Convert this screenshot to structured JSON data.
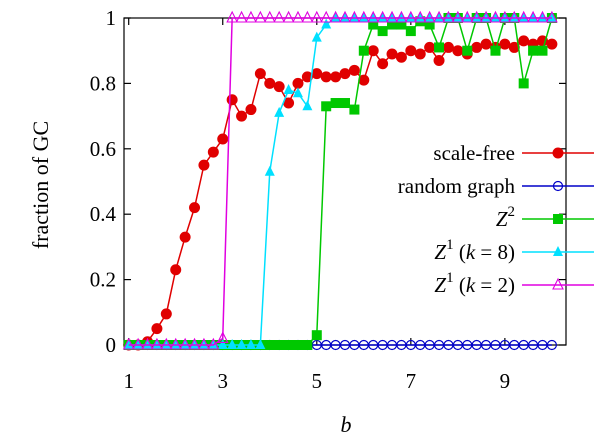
{
  "chart_data": {
    "type": "line",
    "xlabel": "b",
    "ylabel": "fraction of GC",
    "xlim": [
      0.9,
      10.3
    ],
    "ylim": [
      0,
      1
    ],
    "xticks": [
      1,
      3,
      5,
      7,
      9
    ],
    "yticks": [
      0,
      0.2,
      0.4,
      0.6,
      0.8,
      1
    ],
    "xtick_labels": [
      "1",
      "3",
      "5",
      "7",
      "9"
    ],
    "ytick_labels": [
      "0",
      "0.2",
      "0.4",
      "0.6",
      "0.8",
      "1"
    ],
    "grid": false,
    "legend_position": "right",
    "series": [
      {
        "key": "sf",
        "name": "scale-free",
        "color": "#e00000",
        "marker": "circle-filled",
        "x": [
          1.0,
          1.2,
          1.4,
          1.6,
          1.8,
          2.0,
          2.2,
          2.4,
          2.6,
          2.8,
          3.0,
          3.2,
          3.4,
          3.6,
          3.8,
          4.0,
          4.2,
          4.4,
          4.6,
          4.8,
          5.0,
          5.2,
          5.4,
          5.6,
          5.8,
          6.0,
          6.2,
          6.4,
          6.6,
          6.8,
          7.0,
          7.2,
          7.4,
          7.6,
          7.8,
          8.0,
          8.2,
          8.4,
          8.6,
          8.8,
          9.0,
          9.2,
          9.4,
          9.6,
          9.8,
          10.0
        ],
        "y": [
          0,
          0,
          0.01,
          0.05,
          0.095,
          0.23,
          0.33,
          0.42,
          0.55,
          0.59,
          0.63,
          0.75,
          0.7,
          0.72,
          0.83,
          0.8,
          0.79,
          0.74,
          0.8,
          0.82,
          0.83,
          0.82,
          0.82,
          0.83,
          0.84,
          0.81,
          0.9,
          0.86,
          0.89,
          0.88,
          0.9,
          0.89,
          0.91,
          0.87,
          0.91,
          0.9,
          0.89,
          0.91,
          0.92,
          0.91,
          0.92,
          0.91,
          0.93,
          0.92,
          0.93,
          0.92
        ]
      },
      {
        "key": "rg",
        "name": "random graph",
        "color": "#0000c8",
        "marker": "circle-open",
        "x": [
          1.0,
          1.2,
          1.4,
          1.6,
          1.8,
          2.0,
          2.2,
          2.4,
          2.6,
          2.8,
          3.0,
          3.2,
          3.4,
          3.6,
          3.8,
          4.0,
          4.2,
          4.4,
          4.6,
          4.8,
          5.0,
          5.2,
          5.4,
          5.6,
          5.8,
          6.0,
          6.2,
          6.4,
          6.6,
          6.8,
          7.0,
          7.2,
          7.4,
          7.6,
          7.8,
          8.0,
          8.2,
          8.4,
          8.6,
          8.8,
          9.0,
          9.2,
          9.4,
          9.6,
          9.8,
          10.0
        ],
        "y": [
          0,
          0,
          0,
          0,
          0,
          0,
          0,
          0,
          0,
          0,
          0,
          0,
          0,
          0,
          0,
          0,
          0,
          0,
          0,
          0,
          0,
          0,
          0,
          0,
          0,
          0,
          0,
          0,
          0,
          0,
          0,
          0,
          0,
          0,
          0,
          0,
          0,
          0,
          0,
          0,
          0,
          0,
          0,
          0,
          0,
          0
        ]
      },
      {
        "key": "z2",
        "name": "Z2",
        "color": "#00c800",
        "marker": "square-filled",
        "x": [
          1.0,
          1.2,
          1.4,
          1.6,
          1.8,
          2.0,
          2.2,
          2.4,
          2.6,
          2.8,
          3.0,
          3.2,
          3.4,
          3.6,
          3.8,
          4.0,
          4.2,
          4.4,
          4.6,
          4.8,
          5.0,
          5.2,
          5.4,
          5.6,
          5.8,
          6.0,
          6.2,
          6.4,
          6.6,
          6.8,
          7.0,
          7.2,
          7.4,
          7.6,
          7.8,
          8.0,
          8.2,
          8.4,
          8.6,
          8.8,
          9.0,
          9.2,
          9.4,
          9.6,
          9.8,
          10.0
        ],
        "y": [
          0,
          0,
          0,
          0,
          0,
          0,
          0,
          0,
          0,
          0,
          0,
          0,
          0,
          0,
          0,
          0,
          0,
          0,
          0,
          0,
          0.03,
          0.73,
          0.74,
          0.74,
          0.72,
          0.9,
          0.98,
          0.96,
          0.98,
          0.98,
          0.96,
          0.99,
          0.98,
          0.91,
          1.0,
          1.0,
          0.9,
          1.0,
          1.0,
          0.9,
          1.0,
          1.0,
          0.8,
          0.9,
          0.9,
          1.0
        ]
      },
      {
        "key": "z1k8",
        "name": "Z1 (k = 8)",
        "color": "#00e0ff",
        "marker": "triangle-filled",
        "x": [
          1.0,
          1.2,
          1.4,
          1.6,
          1.8,
          2.0,
          2.2,
          2.4,
          2.6,
          2.8,
          3.0,
          3.2,
          3.4,
          3.6,
          3.8,
          4.0,
          4.2,
          4.4,
          4.6,
          4.8,
          5.0,
          5.2,
          5.4,
          5.6,
          5.8,
          6.0,
          6.2,
          6.4,
          6.6,
          6.8,
          7.0,
          7.2,
          7.4,
          7.6,
          7.8,
          8.0,
          8.2,
          8.4,
          8.6,
          8.8,
          9.0,
          9.2,
          9.4,
          9.6,
          9.8,
          10.0
        ],
        "y": [
          0,
          0,
          0,
          0,
          0,
          0,
          0,
          0,
          0,
          0,
          0,
          0,
          0,
          0,
          0,
          0.53,
          0.71,
          0.78,
          0.77,
          0.73,
          0.94,
          0.98,
          1.0,
          1.0,
          1.0,
          1.0,
          1.0,
          1.0,
          1.0,
          1.0,
          1.0,
          1.0,
          1.0,
          1.0,
          1.0,
          1.0,
          1.0,
          1.0,
          1.0,
          1.0,
          1.0,
          1.0,
          1.0,
          1.0,
          1.0,
          1.0
        ]
      },
      {
        "key": "z1k2",
        "name": "Z1 (k = 2)",
        "color": "#e000e0",
        "marker": "triangle-open",
        "x": [
          1.0,
          1.2,
          1.4,
          1.6,
          1.8,
          2.0,
          2.2,
          2.4,
          2.6,
          2.8,
          3.0,
          3.2,
          3.4,
          3.6,
          3.8,
          4.0,
          4.2,
          4.4,
          4.6,
          4.8,
          5.0,
          5.2,
          5.4,
          5.6,
          5.8,
          6.0,
          6.2,
          6.4,
          6.6,
          6.8,
          7.0,
          7.2,
          7.4,
          7.6,
          7.8,
          8.0,
          8.2,
          8.4,
          8.6,
          8.8,
          9.0,
          9.2,
          9.4,
          9.6,
          9.8,
          10.0
        ],
        "y": [
          0,
          0,
          0,
          0,
          0,
          0,
          0,
          0,
          0,
          0,
          0.02,
          1.0,
          1.0,
          1.0,
          1.0,
          1.0,
          1.0,
          1.0,
          1.0,
          1.0,
          1.0,
          1.0,
          1.0,
          1.0,
          1.0,
          1.0,
          1.0,
          1.0,
          1.0,
          1.0,
          1.0,
          1.0,
          1.0,
          1.0,
          1.0,
          1.0,
          1.0,
          1.0,
          1.0,
          1.0,
          1.0,
          1.0,
          1.0,
          1.0,
          1.0,
          1.0
        ]
      }
    ],
    "legend": [
      {
        "key": "sf",
        "label": "scale-free"
      },
      {
        "key": "rg",
        "label": "random graph"
      },
      {
        "key": "z2",
        "main": "Z",
        "sup": "2",
        "rest": ""
      },
      {
        "key": "z1k8",
        "main": "Z",
        "sup": "1",
        "rest": " (k = 8)"
      },
      {
        "key": "z1k2",
        "main": "Z",
        "sup": "1",
        "rest": " (k = 2)"
      }
    ]
  }
}
